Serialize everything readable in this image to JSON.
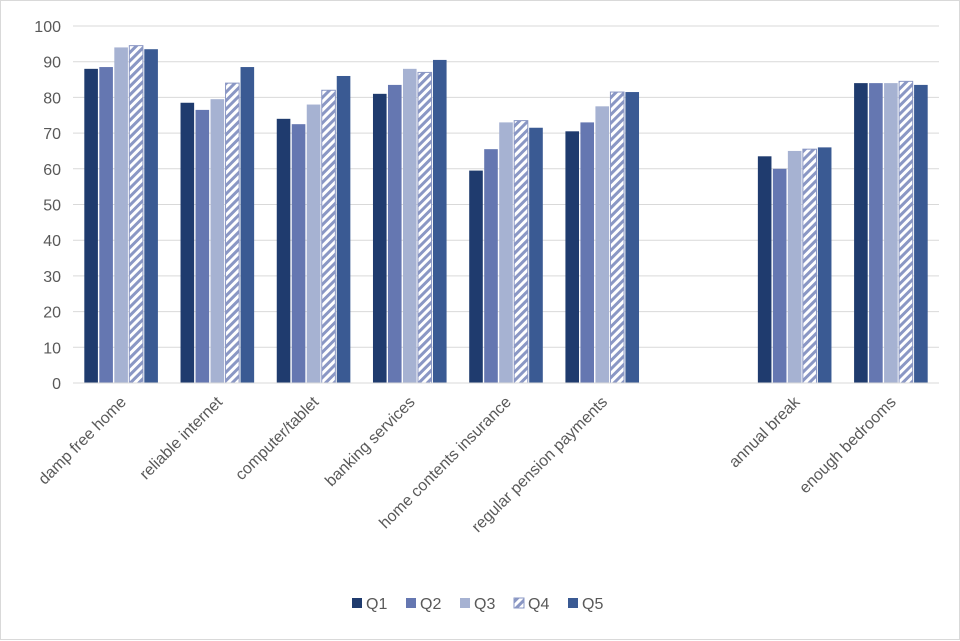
{
  "chart_data": {
    "type": "bar",
    "ylim": [
      0,
      100
    ],
    "yticks": [
      "0",
      "10",
      "20",
      "30",
      "40",
      "50",
      "60",
      "70",
      "80",
      "90",
      "100"
    ],
    "grid": true,
    "legend_position": "bottom",
    "categories": [
      "damp free home",
      "reliable internet",
      "computer/tablet",
      "banking services",
      "home contents insurance",
      "regular pension payments",
      "",
      "annual break",
      "enough bedrooms"
    ],
    "series": [
      {
        "name": "Q1",
        "color": "#1f3b6e",
        "pattern": "solid",
        "values": [
          88,
          78.5,
          74,
          81,
          59.5,
          70.5,
          null,
          63.5,
          84
        ]
      },
      {
        "name": "Q2",
        "color": "#6577b1",
        "pattern": "solid",
        "values": [
          88.5,
          76.5,
          72.5,
          83.5,
          65.5,
          73,
          null,
          60,
          84
        ]
      },
      {
        "name": "Q3",
        "color": "#a6b2d2",
        "pattern": "solid",
        "values": [
          94,
          79.5,
          78,
          88,
          73,
          77.5,
          null,
          65,
          84
        ]
      },
      {
        "name": "Q4",
        "color": "#6577b1",
        "pattern": "hatched",
        "values": [
          94.5,
          84,
          82,
          87,
          73.5,
          81.5,
          null,
          65.5,
          84.5
        ]
      },
      {
        "name": "Q5",
        "color": "#3a5a93",
        "pattern": "solid",
        "values": [
          93.5,
          88.5,
          86,
          90.5,
          71.5,
          81.5,
          null,
          66,
          83.5
        ]
      }
    ]
  }
}
